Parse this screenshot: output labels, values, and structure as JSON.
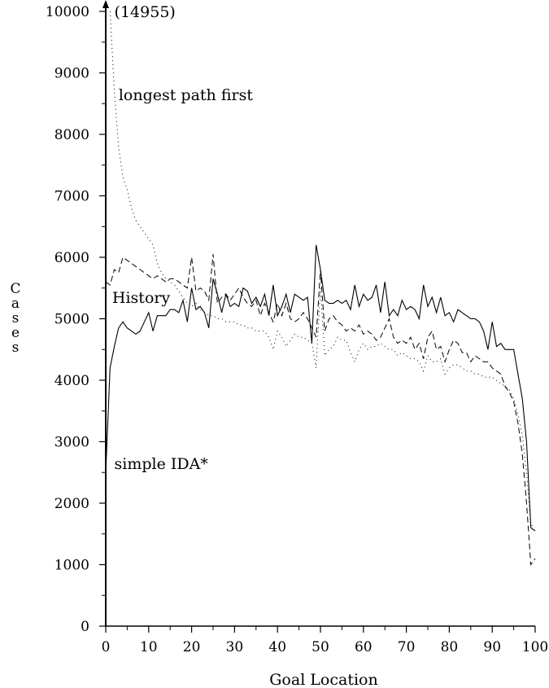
{
  "chart_data": {
    "type": "line",
    "xlabel": "Goal Location",
    "ylabel": "Cases",
    "xlim": [
      0,
      100
    ],
    "ylim": [
      0,
      10000
    ],
    "x_ticks": [
      "0",
      "10",
      "20",
      "30",
      "40",
      "50",
      "60",
      "70",
      "80",
      "90",
      "100"
    ],
    "y_ticks": [
      "0",
      "1000",
      "2000",
      "3000",
      "4000",
      "5000",
      "6000",
      "7000",
      "8000",
      "9000",
      "10000"
    ],
    "grid": false,
    "legend": "none",
    "annotations": [
      {
        "text": "(14955)",
        "x": 2,
        "y": 10000
      },
      {
        "text": "longest path first",
        "x": 3,
        "y": 8650
      },
      {
        "text": "History",
        "x": 1.5,
        "y": 5350
      },
      {
        "text": "simple IDA*",
        "x": 2,
        "y": 2650
      }
    ],
    "series": [
      {
        "style": "dotted",
        "color": "#000000",
        "x": [
          1,
          2,
          3,
          4,
          5,
          6,
          7,
          8,
          9,
          10,
          11,
          12,
          13,
          14,
          15,
          16,
          17,
          18,
          19,
          20,
          21,
          22,
          23,
          24,
          25,
          26,
          27,
          28,
          29,
          30,
          31,
          32,
          33,
          34,
          35,
          36,
          37,
          38,
          39,
          40,
          41,
          42,
          43,
          44,
          45,
          46,
          47,
          48,
          49,
          50,
          51,
          52,
          53,
          54,
          55,
          56,
          57,
          58,
          59,
          60,
          61,
          62,
          63,
          64,
          65,
          66,
          67,
          68,
          69,
          70,
          71,
          72,
          73,
          74,
          75,
          76,
          77,
          78,
          79,
          80,
          81,
          82,
          83,
          84,
          85,
          86,
          87,
          88,
          89,
          90,
          91,
          92,
          93,
          94,
          95,
          96,
          97,
          98,
          99,
          100
        ],
        "y": [
          10000,
          8700,
          7800,
          7300,
          7100,
          6800,
          6600,
          6500,
          6400,
          6300,
          6200,
          5900,
          5750,
          5650,
          5600,
          5550,
          5450,
          5350,
          5250,
          5200,
          5250,
          5150,
          5100,
          5050,
          5050,
          5000,
          5000,
          4950,
          4950,
          4950,
          4900,
          4900,
          4850,
          4850,
          4800,
          4800,
          4800,
          4700,
          4500,
          4800,
          4700,
          4550,
          4650,
          4750,
          4700,
          4700,
          4650,
          4600,
          4200,
          5500,
          4400,
          4500,
          4550,
          4700,
          4650,
          4650,
          4450,
          4300,
          4500,
          4600,
          4500,
          4550,
          4550,
          4600,
          4550,
          4500,
          4500,
          4400,
          4450,
          4400,
          4350,
          4350,
          4300,
          4150,
          4400,
          4300,
          4300,
          4350,
          4100,
          4200,
          4250,
          4250,
          4200,
          4150,
          4150,
          4100,
          4100,
          4050,
          4050,
          4050,
          4000,
          3950,
          3900,
          3850,
          3700,
          3450,
          3100,
          2500,
          1650,
          1600
        ]
      },
      {
        "style": "dashed",
        "color": "#000000",
        "x": [
          0,
          1,
          2,
          3,
          4,
          5,
          6,
          7,
          8,
          9,
          10,
          11,
          12,
          13,
          14,
          15,
          16,
          17,
          18,
          19,
          20,
          21,
          22,
          23,
          24,
          25,
          26,
          27,
          28,
          29,
          30,
          31,
          32,
          33,
          34,
          35,
          36,
          37,
          38,
          39,
          40,
          41,
          42,
          43,
          44,
          45,
          46,
          47,
          48,
          49,
          50,
          51,
          52,
          53,
          54,
          55,
          56,
          57,
          58,
          59,
          60,
          61,
          62,
          63,
          64,
          65,
          66,
          67,
          68,
          69,
          70,
          71,
          72,
          73,
          74,
          75,
          76,
          77,
          78,
          79,
          80,
          81,
          82,
          83,
          84,
          85,
          86,
          87,
          88,
          89,
          90,
          91,
          92,
          93,
          94,
          95,
          96,
          97,
          98,
          99,
          100
        ],
        "y": [
          5600,
          5550,
          5800,
          5750,
          6000,
          5950,
          5900,
          5850,
          5800,
          5750,
          5700,
          5650,
          5700,
          5650,
          5600,
          5650,
          5650,
          5600,
          5550,
          5500,
          6000,
          5450,
          5500,
          5450,
          5300,
          6050,
          5250,
          5350,
          5400,
          5300,
          5400,
          5500,
          5350,
          5250,
          5200,
          5300,
          5050,
          5250,
          5100,
          4950,
          5250,
          5050,
          5250,
          5000,
          4950,
          5000,
          5100,
          5000,
          4850,
          4700,
          5800,
          4800,
          5000,
          5050,
          4950,
          4900,
          4800,
          4850,
          4800,
          4900,
          4750,
          4800,
          4750,
          4650,
          4700,
          4850,
          5000,
          4700,
          4600,
          4650,
          4600,
          4700,
          4500,
          4600,
          4350,
          4700,
          4800,
          4500,
          4550,
          4300,
          4500,
          4650,
          4600,
          4450,
          4450,
          4300,
          4400,
          4350,
          4300,
          4300,
          4200,
          4150,
          4100,
          3900,
          3800,
          3650,
          3300,
          2800,
          2000,
          1000,
          1100
        ]
      },
      {
        "style": "solid",
        "color": "#000000",
        "x": [
          0,
          1,
          2,
          3,
          4,
          5,
          6,
          7,
          8,
          9,
          10,
          11,
          12,
          13,
          14,
          15,
          16,
          17,
          18,
          19,
          20,
          21,
          22,
          23,
          24,
          25,
          26,
          27,
          28,
          29,
          30,
          31,
          32,
          33,
          34,
          35,
          36,
          37,
          38,
          39,
          40,
          41,
          42,
          43,
          44,
          45,
          46,
          47,
          48,
          49,
          50,
          51,
          52,
          53,
          54,
          55,
          56,
          57,
          58,
          59,
          60,
          61,
          62,
          63,
          64,
          65,
          66,
          67,
          68,
          69,
          70,
          71,
          72,
          73,
          74,
          75,
          76,
          77,
          78,
          79,
          80,
          81,
          82,
          83,
          84,
          85,
          86,
          87,
          88,
          89,
          90,
          91,
          92,
          93,
          94,
          95,
          96,
          97,
          98,
          99,
          100
        ],
        "y": [
          2500,
          4200,
          4550,
          4850,
          4950,
          4850,
          4800,
          4750,
          4800,
          4950,
          5100,
          4800,
          5050,
          5050,
          5050,
          5150,
          5150,
          5100,
          5300,
          4950,
          5500,
          5150,
          5200,
          5100,
          4850,
          5650,
          5400,
          5100,
          5400,
          5200,
          5250,
          5200,
          5500,
          5450,
          5250,
          5350,
          5200,
          5400,
          5050,
          5550,
          5050,
          5200,
          5400,
          5100,
          5400,
          5350,
          5300,
          5350,
          4600,
          6200,
          5800,
          5300,
          5250,
          5250,
          5300,
          5250,
          5300,
          5150,
          5550,
          5200,
          5400,
          5300,
          5350,
          5550,
          5100,
          5600,
          5050,
          5150,
          5050,
          5300,
          5150,
          5200,
          5150,
          5000,
          5550,
          5200,
          5350,
          5100,
          5350,
          5050,
          5100,
          4950,
          5150,
          5100,
          5050,
          5000,
          5000,
          4950,
          4800,
          4500,
          4950,
          4550,
          4600,
          4500,
          4500,
          4500,
          4100,
          3700,
          3000,
          1600,
          1550
        ]
      }
    ]
  }
}
